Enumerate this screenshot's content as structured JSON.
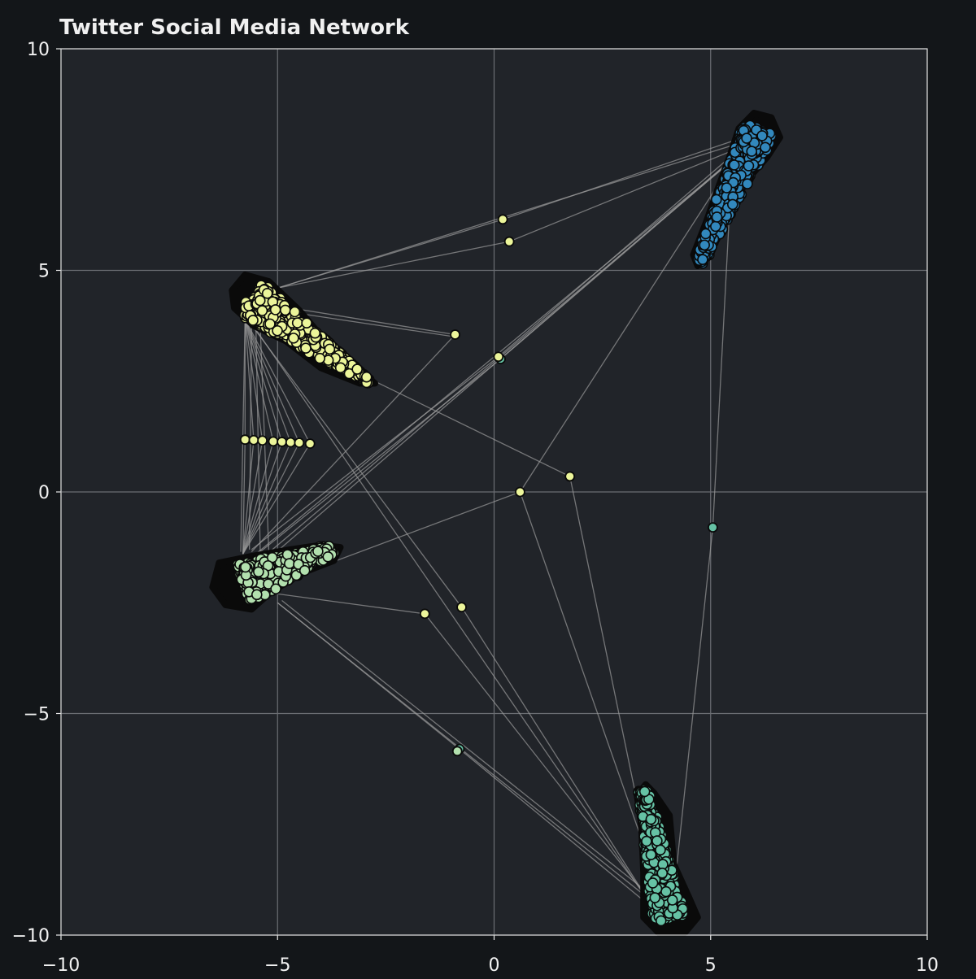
{
  "colors": {
    "page_background": "#131619",
    "plot_background": "#212429",
    "grid": "#6b6e73",
    "edge": "#9a9a9a",
    "node_outline": "#0a0a0a",
    "yellow_group": "#ecf59a",
    "lightgreen_group": "#b2e0ae",
    "teal_group": "#66c2a5",
    "blue_group": "#3288bd"
  },
  "chart_data": {
    "type": "scatter",
    "title": "Twitter Social Media Network",
    "xlim": [
      -10,
      10
    ],
    "ylim": [
      -10,
      10
    ],
    "xticks": [
      -10,
      -5,
      0,
      5,
      10
    ],
    "yticks": [
      -10,
      -5,
      0,
      5,
      10
    ],
    "xtick_labels": [
      "−10",
      "−5",
      "0",
      "5",
      "10"
    ],
    "ytick_labels": [
      "−10",
      "−5",
      "0",
      "5",
      "10"
    ],
    "grid": true,
    "legend": "none",
    "clusters": [
      {
        "group": "blue",
        "color": "#3288bd",
        "hub": [
          5.8,
          7.8
        ],
        "outline": [
          [
            6.0,
            8.55
          ],
          [
            6.4,
            8.45
          ],
          [
            6.6,
            8.0
          ],
          [
            6.3,
            7.55
          ],
          [
            5.85,
            7.05
          ],
          [
            5.35,
            6.3
          ],
          [
            5.05,
            5.75
          ],
          [
            4.7,
            5.1
          ],
          [
            4.6,
            5.35
          ],
          [
            4.9,
            6.1
          ],
          [
            5.15,
            6.8
          ],
          [
            5.45,
            7.6
          ],
          [
            5.65,
            8.2
          ]
        ],
        "axis_start": [
          6.1,
          8.2
        ],
        "axis_end": [
          4.75,
          5.2
        ],
        "width_start": 0.38,
        "width_end": 0.05
      },
      {
        "group": "yellow",
        "color": "#ecf59a",
        "hub": [
          -5.5,
          4.2
        ],
        "outline": [
          [
            -5.75,
            4.9
          ],
          [
            -5.2,
            4.75
          ],
          [
            -4.5,
            4.1
          ],
          [
            -3.8,
            3.3
          ],
          [
            -3.0,
            2.65
          ],
          [
            -2.75,
            2.45
          ],
          [
            -3.1,
            2.45
          ],
          [
            -4.0,
            2.8
          ],
          [
            -4.8,
            3.4
          ],
          [
            -5.55,
            3.75
          ],
          [
            -6.0,
            4.15
          ],
          [
            -6.05,
            4.55
          ]
        ],
        "axis_start": [
          -5.6,
          4.35
        ],
        "axis_end": [
          -2.9,
          2.5
        ],
        "width_start": 0.5,
        "width_end": 0.05
      },
      {
        "group": "lightgreen",
        "color": "#b2e0ae",
        "hub": [
          -5.6,
          -2.0
        ],
        "outline": [
          [
            -6.35,
            -1.6
          ],
          [
            -5.6,
            -1.45
          ],
          [
            -4.7,
            -1.3
          ],
          [
            -4.0,
            -1.2
          ],
          [
            -3.55,
            -1.25
          ],
          [
            -3.7,
            -1.55
          ],
          [
            -4.5,
            -1.85
          ],
          [
            -5.2,
            -2.3
          ],
          [
            -5.6,
            -2.65
          ],
          [
            -6.2,
            -2.55
          ],
          [
            -6.5,
            -2.15
          ]
        ],
        "axis_start": [
          -5.8,
          -2.05
        ],
        "axis_end": [
          -3.75,
          -1.3
        ],
        "width_start": 0.5,
        "width_end": 0.07
      },
      {
        "group": "teal",
        "color": "#66c2a5",
        "hub": [
          3.9,
          -9.0
        ],
        "outline": [
          [
            3.5,
            -6.6
          ],
          [
            3.7,
            -6.8
          ],
          [
            4.05,
            -7.3
          ],
          [
            4.15,
            -8.4
          ],
          [
            4.5,
            -9.15
          ],
          [
            4.7,
            -9.6
          ],
          [
            4.4,
            -9.95
          ],
          [
            3.8,
            -9.95
          ],
          [
            3.45,
            -9.6
          ],
          [
            3.45,
            -8.6
          ],
          [
            3.4,
            -7.5
          ],
          [
            3.3,
            -6.85
          ]
        ],
        "axis_start": [
          3.45,
          -6.75
        ],
        "axis_end": [
          4.05,
          -9.6
        ],
        "width_start": 0.1,
        "width_end": 0.4
      }
    ],
    "isolated_nodes": [
      {
        "x": 0.2,
        "y": 6.15,
        "group": "yellow"
      },
      {
        "x": 0.35,
        "y": 5.65,
        "group": "yellow"
      },
      {
        "x": -0.9,
        "y": 3.55,
        "group": "yellow"
      },
      {
        "x": 0.15,
        "y": 3.0,
        "group": "teal"
      },
      {
        "x": 0.1,
        "y": 3.05,
        "group": "yellow"
      },
      {
        "x": 1.75,
        "y": 0.35,
        "group": "yellow"
      },
      {
        "x": 0.6,
        "y": 0.0,
        "group": "yellow"
      },
      {
        "x": 5.05,
        "y": -0.8,
        "group": "teal"
      },
      {
        "x": -1.6,
        "y": -2.75,
        "group": "yellow"
      },
      {
        "x": -0.75,
        "y": -2.6,
        "group": "yellow"
      },
      {
        "x": -0.8,
        "y": -5.8,
        "group": "teal"
      },
      {
        "x": -0.85,
        "y": -5.85,
        "group": "lightgreen"
      },
      {
        "x": -5.75,
        "y": 1.18,
        "group": "yellow"
      },
      {
        "x": -5.55,
        "y": 1.17,
        "group": "yellow"
      },
      {
        "x": -5.35,
        "y": 1.16,
        "group": "yellow"
      },
      {
        "x": -5.1,
        "y": 1.14,
        "group": "yellow"
      },
      {
        "x": -4.9,
        "y": 1.13,
        "group": "yellow"
      },
      {
        "x": -4.7,
        "y": 1.12,
        "group": "yellow"
      },
      {
        "x": -4.5,
        "y": 1.11,
        "group": "yellow"
      },
      {
        "x": -4.25,
        "y": 1.09,
        "group": "yellow"
      }
    ],
    "edges": [
      [
        [
          -5.0,
          4.6
        ],
        [
          5.6,
          7.85
        ]
      ],
      [
        [
          -5.0,
          4.6
        ],
        [
          0.2,
          6.15
        ]
      ],
      [
        [
          -5.0,
          4.6
        ],
        [
          0.35,
          5.65
        ]
      ],
      [
        [
          0.2,
          6.15
        ],
        [
          5.6,
          7.95
        ]
      ],
      [
        [
          0.35,
          5.65
        ],
        [
          5.5,
          7.7
        ]
      ],
      [
        [
          -5.0,
          4.2
        ],
        [
          -0.9,
          3.55
        ]
      ],
      [
        [
          -5.0,
          4.1
        ],
        [
          -0.9,
          3.5
        ]
      ],
      [
        [
          -5.7,
          3.9
        ],
        [
          1.75,
          0.35
        ]
      ],
      [
        [
          -5.3,
          -1.45
        ],
        [
          5.4,
          7.4
        ]
      ],
      [
        [
          -5.5,
          -1.4
        ],
        [
          5.5,
          7.5
        ]
      ],
      [
        [
          -5.2,
          -1.5
        ],
        [
          5.6,
          7.6
        ]
      ],
      [
        [
          -5.6,
          -1.35
        ],
        [
          -0.9,
          3.55
        ]
      ],
      [
        [
          -5.6,
          -1.3
        ],
        [
          0.1,
          3.05
        ]
      ],
      [
        [
          -5.4,
          -1.35
        ],
        [
          0.15,
          3.0
        ]
      ],
      [
        [
          0.1,
          3.05
        ],
        [
          5.5,
          7.6
        ]
      ],
      [
        [
          0.15,
          3.0
        ],
        [
          5.45,
          7.45
        ]
      ],
      [
        [
          -4.6,
          -1.9
        ],
        [
          0.6,
          0.0
        ]
      ],
      [
        [
          0.6,
          0.0
        ],
        [
          5.35,
          7.2
        ]
      ],
      [
        [
          0.6,
          0.0
        ],
        [
          3.5,
          -8.1
        ]
      ],
      [
        [
          1.75,
          0.35
        ],
        [
          3.6,
          -8.4
        ]
      ],
      [
        [
          5.05,
          -0.8
        ],
        [
          5.45,
          6.6
        ]
      ],
      [
        [
          5.05,
          -0.8
        ],
        [
          4.2,
          -8.6
        ]
      ],
      [
        [
          -5.0,
          -2.3
        ],
        [
          -1.6,
          -2.75
        ]
      ],
      [
        [
          -1.6,
          -2.75
        ],
        [
          3.5,
          -9.1
        ]
      ],
      [
        [
          -5.7,
          3.9
        ],
        [
          -0.75,
          -2.6
        ]
      ],
      [
        [
          -0.75,
          -2.6
        ],
        [
          3.55,
          -9.2
        ]
      ],
      [
        [
          -5.7,
          3.95
        ],
        [
          3.4,
          -9.0
        ]
      ],
      [
        [
          -5.0,
          -2.5
        ],
        [
          -0.8,
          -5.8
        ]
      ],
      [
        [
          -0.8,
          -5.8
        ],
        [
          3.55,
          -9.3
        ]
      ],
      [
        [
          -5.0,
          -2.5
        ],
        [
          3.6,
          -9.2
        ]
      ],
      [
        [
          -4.9,
          -2.45
        ],
        [
          3.5,
          -9.0
        ]
      ],
      [
        [
          -5.75,
          3.9
        ],
        [
          -5.75,
          1.18
        ]
      ],
      [
        [
          -5.75,
          3.9
        ],
        [
          -5.55,
          1.17
        ]
      ],
      [
        [
          -5.75,
          3.9
        ],
        [
          -5.35,
          1.16
        ]
      ],
      [
        [
          -5.75,
          3.9
        ],
        [
          -5.1,
          1.14
        ]
      ],
      [
        [
          -5.75,
          3.9
        ],
        [
          -4.9,
          1.13
        ]
      ],
      [
        [
          -5.75,
          3.9
        ],
        [
          -4.7,
          1.12
        ]
      ],
      [
        [
          -5.75,
          3.9
        ],
        [
          -4.5,
          1.11
        ]
      ],
      [
        [
          -5.75,
          3.9
        ],
        [
          -4.25,
          1.09
        ]
      ],
      [
        [
          -5.8,
          -1.4
        ],
        [
          -5.75,
          1.18
        ]
      ],
      [
        [
          -5.8,
          -1.4
        ],
        [
          -5.55,
          1.17
        ]
      ],
      [
        [
          -5.8,
          -1.4
        ],
        [
          -5.35,
          1.16
        ]
      ],
      [
        [
          -5.8,
          -1.4
        ],
        [
          -5.1,
          1.14
        ]
      ],
      [
        [
          -5.8,
          -1.4
        ],
        [
          -4.9,
          1.13
        ]
      ],
      [
        [
          -5.8,
          -1.4
        ],
        [
          -4.7,
          1.12
        ]
      ],
      [
        [
          -5.8,
          -1.4
        ],
        [
          -4.5,
          1.11
        ]
      ],
      [
        [
          -5.8,
          -1.4
        ],
        [
          -4.25,
          1.09
        ]
      ],
      [
        [
          -5.75,
          3.9
        ],
        [
          -5.85,
          -1.35
        ]
      ],
      [
        [
          -5.6,
          3.85
        ],
        [
          -5.65,
          -1.3
        ]
      ],
      [
        [
          -5.5,
          3.8
        ],
        [
          -5.4,
          -1.35
        ]
      ],
      [
        [
          -5.4,
          3.75
        ],
        [
          -5.2,
          -1.4
        ]
      ]
    ]
  }
}
